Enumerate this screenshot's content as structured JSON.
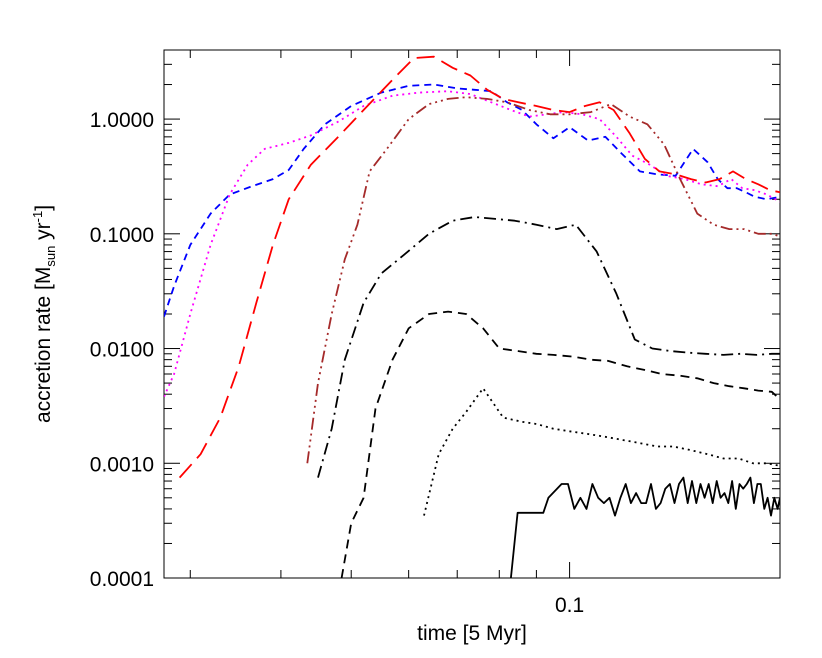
{
  "chart_data": {
    "type": "line",
    "xlabel": "time [5 Myr]",
    "ylabel": {
      "prefix": "accretion rate [M",
      "sub": "sun",
      "middle": " yr",
      "sup": "-1",
      "suffix": "]"
    },
    "x_scale": "log",
    "y_scale": "log",
    "xlim": [
      0.0276,
      0.195
    ],
    "ylim": [
      0.0001,
      4.0
    ],
    "grid": false,
    "legend": "none",
    "x_ticks": [
      {
        "value": 0.1,
        "label": "0.1"
      }
    ],
    "y_ticks": [
      {
        "value": 0.0001,
        "label": "0.0001"
      },
      {
        "value": 0.001,
        "label": "0.0010"
      },
      {
        "value": 0.01,
        "label": "0.0100"
      },
      {
        "value": 0.1,
        "label": "0.1000"
      },
      {
        "value": 1.0,
        "label": "1.0000"
      }
    ],
    "series": [
      {
        "color": "#0000ff",
        "dash": "short-dash",
        "x": [
          0.0276,
          0.0285,
          0.03,
          0.032,
          0.034,
          0.0365,
          0.039,
          0.041,
          0.043,
          0.046,
          0.05,
          0.055,
          0.06,
          0.065,
          0.07,
          0.074,
          0.078,
          0.082,
          0.086,
          0.09,
          0.095,
          0.1,
          0.106,
          0.112,
          0.118,
          0.125,
          0.132,
          0.14,
          0.148,
          0.155,
          0.16,
          0.165,
          0.17,
          0.175,
          0.18,
          0.187,
          0.195
        ],
        "y": [
          0.019,
          0.035,
          0.08,
          0.15,
          0.22,
          0.26,
          0.3,
          0.36,
          0.55,
          0.9,
          1.3,
          1.7,
          1.95,
          2.0,
          1.85,
          1.8,
          1.75,
          1.4,
          1.2,
          0.9,
          0.68,
          0.85,
          0.65,
          0.7,
          0.5,
          0.35,
          0.33,
          0.32,
          0.55,
          0.42,
          0.3,
          0.25,
          0.25,
          0.23,
          0.21,
          0.2,
          0.21
        ]
      },
      {
        "color": "#ff00ff",
        "dash": "dot",
        "x": [
          0.0276,
          0.0285,
          0.03,
          0.032,
          0.034,
          0.036,
          0.038,
          0.041,
          0.044,
          0.048,
          0.052,
          0.057,
          0.062,
          0.068,
          0.073,
          0.078,
          0.083,
          0.088,
          0.093,
          0.098,
          0.104,
          0.11,
          0.116,
          0.122,
          0.129,
          0.136,
          0.144,
          0.152,
          0.16,
          0.167,
          0.173,
          0.18,
          0.187,
          0.195
        ],
        "y": [
          0.0038,
          0.006,
          0.02,
          0.08,
          0.22,
          0.4,
          0.55,
          0.62,
          0.72,
          0.95,
          1.3,
          1.6,
          1.7,
          1.75,
          1.65,
          1.4,
          1.2,
          1.05,
          1.1,
          1.15,
          1.1,
          1.0,
          0.7,
          0.48,
          0.4,
          0.32,
          0.3,
          0.27,
          0.26,
          0.3,
          0.25,
          0.24,
          0.22,
          0.19
        ]
      },
      {
        "color": "#ff0000",
        "dash": "long-dash",
        "x": [
          0.029,
          0.031,
          0.033,
          0.035,
          0.037,
          0.039,
          0.041,
          0.044,
          0.048,
          0.052,
          0.057,
          0.061,
          0.065,
          0.069,
          0.073,
          0.077,
          0.081,
          0.085,
          0.09,
          0.095,
          0.1,
          0.105,
          0.11,
          0.115,
          0.121,
          0.127,
          0.133,
          0.14,
          0.147,
          0.154,
          0.161,
          0.168,
          0.175,
          0.182,
          0.189,
          0.195
        ],
        "y": [
          0.00075,
          0.0012,
          0.0025,
          0.007,
          0.025,
          0.08,
          0.2,
          0.4,
          0.7,
          1.2,
          2.2,
          3.4,
          3.5,
          2.8,
          2.4,
          1.8,
          1.5,
          1.4,
          1.3,
          1.2,
          1.15,
          1.3,
          1.4,
          1.2,
          0.75,
          0.45,
          0.35,
          0.33,
          0.3,
          0.28,
          0.3,
          0.35,
          0.3,
          0.27,
          0.24,
          0.23
        ]
      },
      {
        "color": "#a52a2a",
        "dash": "dash-dot-dot-dot",
        "x": [
          0.0435,
          0.045,
          0.047,
          0.049,
          0.051,
          0.053,
          0.056,
          0.06,
          0.064,
          0.068,
          0.072,
          0.077,
          0.082,
          0.088,
          0.094,
          0.1,
          0.107,
          0.114,
          0.121,
          0.128,
          0.135,
          0.142,
          0.15,
          0.158,
          0.166,
          0.174,
          0.182,
          0.19,
          0.195
        ],
        "y": [
          0.001,
          0.005,
          0.02,
          0.06,
          0.12,
          0.35,
          0.55,
          1.0,
          1.35,
          1.5,
          1.55,
          1.5,
          1.4,
          1.2,
          1.1,
          1.1,
          1.15,
          1.35,
          1.05,
          0.9,
          0.6,
          0.3,
          0.15,
          0.12,
          0.11,
          0.11,
          0.1,
          0.1,
          0.095
        ]
      },
      {
        "color": "#000000",
        "dash": "dash-dot",
        "x": [
          0.045,
          0.047,
          0.049,
          0.052,
          0.055,
          0.059,
          0.064,
          0.069,
          0.074,
          0.079,
          0.084,
          0.09,
          0.096,
          0.102,
          0.109,
          0.116,
          0.123,
          0.13,
          0.138,
          0.146,
          0.154,
          0.163,
          0.172,
          0.181,
          0.19,
          0.195
        ],
        "y": [
          0.00075,
          0.002,
          0.008,
          0.025,
          0.045,
          0.065,
          0.1,
          0.13,
          0.14,
          0.135,
          0.13,
          0.12,
          0.11,
          0.12,
          0.07,
          0.03,
          0.012,
          0.01,
          0.0095,
          0.0092,
          0.009,
          0.0088,
          0.009,
          0.0088,
          0.009,
          0.009
        ]
      },
      {
        "color": "#000000",
        "dash": "dash",
        "x": [
          0.0485,
          0.05,
          0.052,
          0.054,
          0.057,
          0.06,
          0.064,
          0.068,
          0.072,
          0.076,
          0.08,
          0.085,
          0.09,
          0.095,
          0.101,
          0.107,
          0.113,
          0.12,
          0.127,
          0.134,
          0.142,
          0.15,
          0.158,
          0.166,
          0.174,
          0.182,
          0.19,
          0.195
        ],
        "y": [
          0.0001,
          0.0003,
          0.0005,
          0.003,
          0.008,
          0.015,
          0.02,
          0.021,
          0.02,
          0.015,
          0.01,
          0.0095,
          0.009,
          0.0088,
          0.0085,
          0.008,
          0.0078,
          0.007,
          0.0065,
          0.006,
          0.0058,
          0.0055,
          0.005,
          0.0047,
          0.0045,
          0.0043,
          0.0042,
          0.0036
        ]
      },
      {
        "color": "#000000",
        "dash": "dot",
        "x": [
          0.063,
          0.066,
          0.069,
          0.072,
          0.076,
          0.081,
          0.086,
          0.09,
          0.095,
          0.1,
          0.106,
          0.112,
          0.118,
          0.125,
          0.132,
          0.139,
          0.147,
          0.155,
          0.163,
          0.171,
          0.179,
          0.187,
          0.195
        ],
        "y": [
          0.00035,
          0.0012,
          0.002,
          0.0028,
          0.0045,
          0.0025,
          0.0023,
          0.0022,
          0.002,
          0.0019,
          0.0018,
          0.0017,
          0.0016,
          0.0015,
          0.0014,
          0.0014,
          0.0013,
          0.0012,
          0.0011,
          0.0011,
          0.001,
          0.001,
          0.00095
        ]
      },
      {
        "color": "#000000",
        "dash": "solid",
        "x": [
          0.083,
          0.0848,
          0.092,
          0.0935,
          0.0975,
          0.0995,
          0.1015,
          0.1035,
          0.1055,
          0.1075,
          0.1095,
          0.1115,
          0.1135,
          0.1155,
          0.1175,
          0.1195,
          0.1215,
          0.1235,
          0.1255,
          0.1275,
          0.1295,
          0.1315,
          0.1335,
          0.1355,
          0.1375,
          0.1395,
          0.1415,
          0.1435,
          0.1455,
          0.1475,
          0.1495,
          0.1515,
          0.1535,
          0.1555,
          0.1575,
          0.1595,
          0.1615,
          0.1635,
          0.1655,
          0.1675,
          0.1695,
          0.1715,
          0.1735,
          0.1755,
          0.1775,
          0.1795,
          0.1815,
          0.1835,
          0.1855,
          0.1875,
          0.1895,
          0.1915,
          0.1935,
          0.195
        ],
        "y": [
          0.0001,
          0.00037,
          0.00037,
          0.0005,
          0.00066,
          0.00066,
          0.0004,
          0.0005,
          0.0004,
          0.00066,
          0.0005,
          0.00045,
          0.0005,
          0.00035,
          0.0005,
          0.00066,
          0.00045,
          0.00055,
          0.00045,
          0.00045,
          0.00066,
          0.0004,
          0.00045,
          0.0006,
          0.00066,
          0.00045,
          0.00066,
          0.00075,
          0.00045,
          0.0007,
          0.00045,
          0.00066,
          0.0005,
          0.00066,
          0.00045,
          0.0007,
          0.0005,
          0.00055,
          0.00045,
          0.0007,
          0.0004,
          0.00066,
          0.0006,
          0.00066,
          0.00075,
          0.00045,
          0.00066,
          0.00066,
          0.0004,
          0.0005,
          0.00035,
          0.0005,
          0.0004,
          0.0005
        ]
      }
    ]
  }
}
